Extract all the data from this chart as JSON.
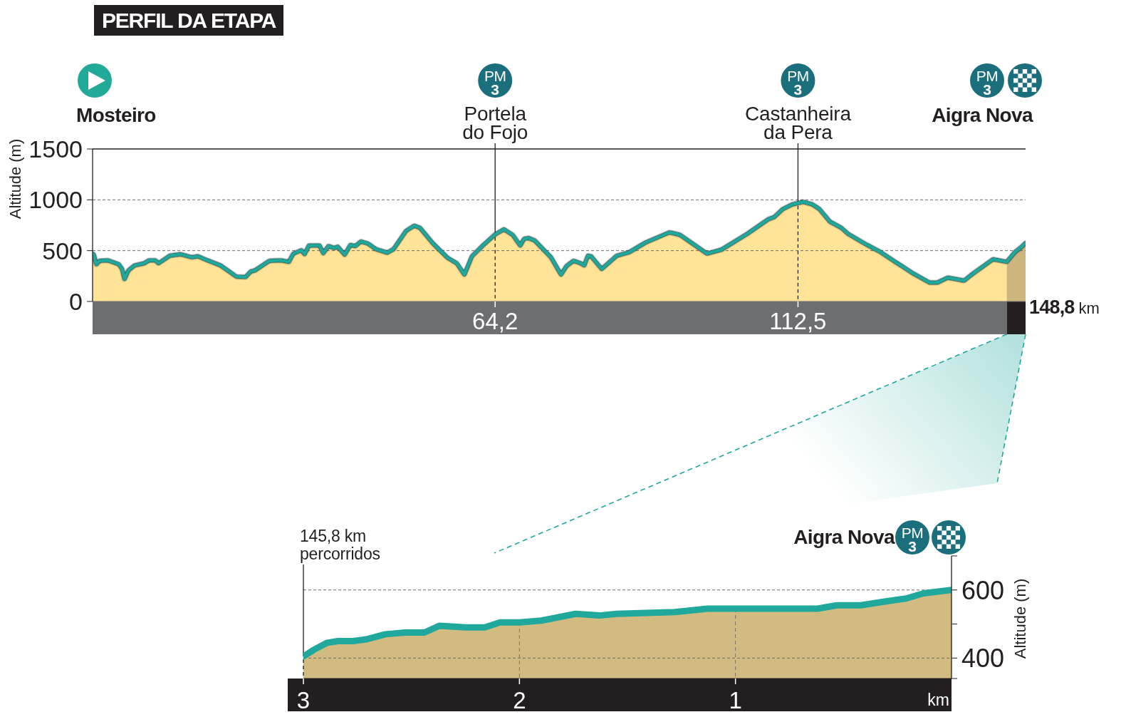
{
  "chart_data": [
    {
      "type": "area",
      "title": "PERFIL DA ETAPA",
      "ylabel": "Altitude (m)",
      "x": [
        0,
        0.2,
        0.6,
        1.1,
        2.4,
        4.2,
        4.7,
        5.1,
        5.7,
        6.7,
        8.2,
        9.0,
        10.0,
        10.5,
        12.3,
        14.0,
        15.8,
        16.8,
        18.3,
        20.4,
        21.9,
        22.9,
        24.4,
        25.2,
        25.9,
        28.2,
        30.0,
        31.3,
        32.0,
        33.3,
        33.8,
        34.5,
        36.2,
        36.8,
        37.6,
        38.6,
        39.1,
        40.2,
        41.1,
        41.9,
        42.8,
        43.9,
        45.2,
        47.0,
        48.0,
        50.0,
        51.3,
        52.2,
        54.3,
        56.6,
        58.1,
        59.3,
        60.5,
        62.4,
        64.2,
        65.6,
        67.0,
        68.2,
        68.8,
        69.5,
        70.5,
        73.1,
        74.7,
        75.6,
        76.7,
        77.7,
        78.4,
        79.0,
        79.5,
        81.2,
        83.6,
        85.6,
        88.2,
        92.0,
        93.7,
        98.0,
        100.3,
        104.4,
        107.8,
        108.7,
        110.1,
        111.6,
        113.3,
        114.8,
        115.9,
        117.6,
        119.4,
        120.5,
        123.4,
        125.7,
        127.4,
        130.9,
        133.5,
        134.7,
        136.4,
        139.0,
        140.1,
        143.6,
        145.8,
        147.1,
        148.2,
        148.8
      ],
      "series": [
        {
          "type": "area",
          "color": "#ffe396",
          "values": [
            470,
            460,
            365,
            400,
            405,
            365,
            320,
            220,
            305,
            355,
            375,
            405,
            405,
            375,
            450,
            465,
            435,
            445,
            405,
            355,
            290,
            245,
            240,
            295,
            305,
            400,
            405,
            390,
            470,
            505,
            465,
            550,
            550,
            475,
            545,
            525,
            540,
            460,
            555,
            545,
            590,
            570,
            515,
            480,
            515,
            695,
            745,
            725,
            570,
            430,
            375,
            265,
            445,
            560,
            660,
            710,
            655,
            550,
            615,
            625,
            600,
            435,
            265,
            350,
            400,
            380,
            355,
            450,
            445,
            320,
            450,
            485,
            580,
            680,
            655,
            470,
            510,
            665,
            810,
            830,
            910,
            955,
            980,
            955,
            910,
            785,
            725,
            665,
            560,
            485,
            415,
            275,
            185,
            185,
            235,
            205,
            260,
            415,
            390,
            null,
            null,
            null
          ]
        },
        {
          "type": "area",
          "color": "#cdb57e",
          "x": [
            145.8,
            147.1,
            148.2,
            148.8
          ],
          "values": [
            390,
            485,
            540,
            575
          ]
        },
        {
          "type": "line",
          "color": "#1fa89b",
          "values": [
            470,
            460,
            365,
            400,
            405,
            365,
            320,
            220,
            305,
            355,
            375,
            405,
            405,
            375,
            450,
            465,
            435,
            445,
            405,
            355,
            290,
            245,
            240,
            295,
            305,
            400,
            405,
            390,
            470,
            505,
            465,
            550,
            550,
            475,
            545,
            525,
            540,
            460,
            555,
            545,
            590,
            570,
            515,
            480,
            515,
            695,
            745,
            725,
            570,
            430,
            375,
            265,
            445,
            560,
            660,
            710,
            655,
            550,
            615,
            625,
            600,
            435,
            265,
            350,
            400,
            380,
            355,
            450,
            445,
            320,
            450,
            485,
            580,
            680,
            655,
            470,
            510,
            665,
            810,
            830,
            910,
            955,
            980,
            955,
            910,
            785,
            725,
            665,
            560,
            485,
            415,
            275,
            185,
            185,
            235,
            205,
            260,
            415,
            390,
            485,
            540,
            575
          ]
        }
      ],
      "xlim": [
        0,
        148.8
      ],
      "xticks": [
        {
          "value": 64.2,
          "label": "64,2"
        },
        {
          "value": 112.5,
          "label": "112,5"
        }
      ],
      "ylim": [
        0,
        1500
      ],
      "yticks": [
        0,
        500,
        1000,
        1500
      ],
      "grid": "y",
      "ref_lines": [
        {
          "axis": "x",
          "value": 64.2,
          "label": "Portela do Fojo"
        },
        {
          "axis": "x",
          "value": 112.5,
          "label": "Castanheira da Pera"
        }
      ],
      "annotations": [
        "Mosteiro",
        "Aigra Nova",
        "PM 3",
        "PM 3",
        "PM 3",
        "148,8 km"
      ]
    },
    {
      "type": "area",
      "xlabel": "km",
      "ylabel": "Altitude (m)",
      "x": [
        3,
        2.95,
        2.89,
        2.84,
        2.77,
        2.71,
        2.62,
        2.53,
        2.44,
        2.37,
        2.25,
        2.16,
        2.09,
        2.0,
        1.9,
        1.74,
        1.63,
        1.55,
        1.28,
        1.13,
        1.0,
        0.76,
        0.62,
        0.53,
        0.42,
        0.32,
        0.21,
        0.13,
        0
      ],
      "series": [
        {
          "type": "area",
          "color": "#d1bb80",
          "values": [
            405,
            425,
            445,
            450,
            450,
            455,
            470,
            475,
            475,
            495,
            490,
            490,
            505,
            505,
            510,
            530,
            525,
            530,
            535,
            545,
            545,
            545,
            545,
            555,
            555,
            565,
            575,
            590,
            600
          ]
        },
        {
          "type": "line",
          "color": "#1fa89b",
          "values": [
            405,
            425,
            445,
            450,
            450,
            455,
            470,
            475,
            475,
            495,
            490,
            490,
            505,
            505,
            510,
            530,
            525,
            530,
            535,
            545,
            545,
            545,
            545,
            555,
            555,
            565,
            575,
            590,
            600
          ]
        }
      ],
      "xlim": [
        3,
        0
      ],
      "xticks": [
        3,
        2,
        1
      ],
      "ylim": [
        340,
        700
      ],
      "yticks": [
        {
          "value": 340,
          "label": null
        },
        400,
        {
          "value": 500,
          "label": null
        },
        600,
        {
          "value": 700,
          "label": null
        }
      ],
      "grid": "y",
      "ref_lines": [
        {
          "axis": "x",
          "value": 3,
          "label": "145,8 km percorridos"
        },
        {
          "axis": "x",
          "value": 2,
          "color": "#7a7468",
          "line_style": "dashed"
        },
        {
          "axis": "x",
          "value": 1,
          "color": "#7a7468",
          "line_style": "dashed"
        }
      ],
      "annotations": [
        "Aigra Nova",
        "PM 3"
      ]
    }
  ]
}
